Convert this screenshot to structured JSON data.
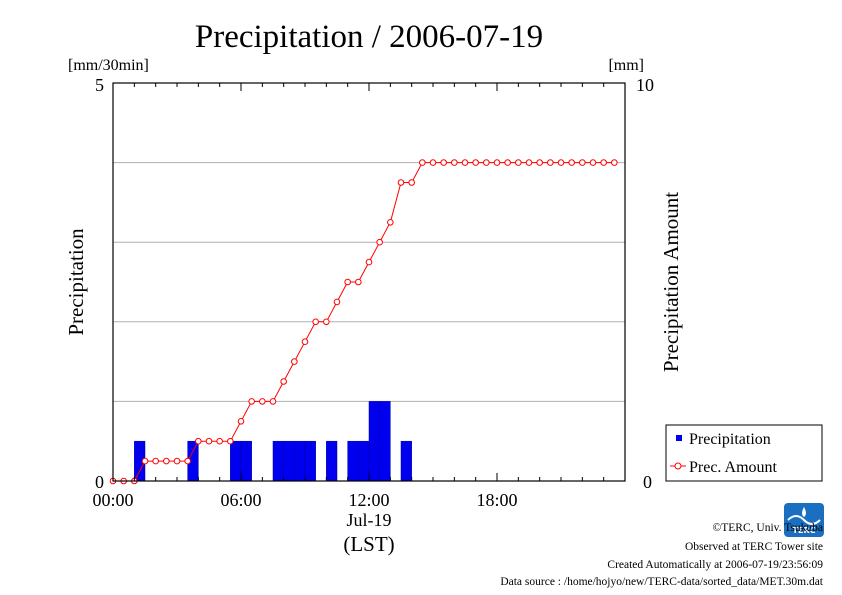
{
  "chart_data": {
    "type": "bar+line",
    "title": "Precipitation / 2006-07-19",
    "left_unit": "[mm/30min]",
    "right_unit": "[mm]",
    "ylabel_left": "Precipitation",
    "ylabel_right": "Precipitation Amount",
    "y_left_range": [
      0,
      5
    ],
    "y_right_range": [
      0,
      10
    ],
    "y_left_ticks": [
      "0",
      "5"
    ],
    "y_right_ticks": [
      "0",
      "10"
    ],
    "x_range_hours": [
      0,
      24
    ],
    "x_ticks": [
      {
        "hour": 0,
        "label": "00:00"
      },
      {
        "hour": 6,
        "label": "06:00"
      },
      {
        "hour": 12,
        "label": "12:00"
      },
      {
        "hour": 18,
        "label": "18:00"
      }
    ],
    "x_date_label": "Jul-19",
    "x_zone_label": "(LST)",
    "grid": "horizontal",
    "legend_position": "bottom-right",
    "series": [
      {
        "name": "Precipitation",
        "type": "bar",
        "axis": "left",
        "color": "#0000ee",
        "x_hours": [
          1.0,
          3.5,
          5.5,
          6.0,
          7.5,
          8.0,
          8.5,
          9.0,
          10.0,
          11.0,
          11.5,
          12.0,
          12.5,
          13.5
        ],
        "values": [
          0.5,
          0.5,
          0.5,
          0.5,
          0.5,
          0.5,
          0.5,
          0.5,
          0.5,
          0.5,
          0.5,
          1.0,
          1.0,
          0.5
        ]
      },
      {
        "name": "Prec. Amount",
        "type": "line",
        "axis": "right",
        "color": "#ff0000",
        "x_hours": [
          0,
          0.5,
          1.0,
          1.5,
          2.0,
          2.5,
          3.0,
          3.5,
          4.0,
          4.5,
          5.0,
          5.5,
          6.0,
          6.5,
          7.0,
          7.5,
          8.0,
          8.5,
          9.0,
          9.5,
          10.0,
          10.5,
          11.0,
          11.5,
          12.0,
          12.5,
          13.0,
          13.5,
          14.0,
          14.5,
          15.0,
          15.5,
          16.0,
          16.5,
          17.0,
          17.5,
          18.0,
          18.5,
          19.0,
          19.5,
          20.0,
          20.5,
          21.0,
          21.5,
          22.0,
          22.5,
          23.0,
          23.5
        ],
        "values": [
          0,
          0,
          0,
          0.5,
          0.5,
          0.5,
          0.5,
          0.5,
          1.0,
          1.0,
          1.0,
          1.0,
          1.5,
          2.0,
          2.0,
          2.0,
          2.5,
          3.0,
          3.5,
          4.0,
          4.0,
          4.5,
          5.0,
          5.0,
          5.5,
          6.0,
          6.5,
          7.5,
          7.5,
          8.0,
          8.0,
          8.0,
          8.0,
          8.0,
          8.0,
          8.0,
          8.0,
          8.0,
          8.0,
          8.0,
          8.0,
          8.0,
          8.0,
          8.0,
          8.0,
          8.0,
          8.0,
          8.0
        ]
      }
    ]
  },
  "footer": {
    "copyright": "©TERC, Univ. Tsukuba",
    "observed": "Observed at TERC Tower site",
    "created": "Created Automatically at 2006-07-19/23:56:09",
    "source": "Data source : /home/hojyo/new/TERC-data/sorted_data/MET.30m.dat",
    "logo_text": "TERC"
  }
}
